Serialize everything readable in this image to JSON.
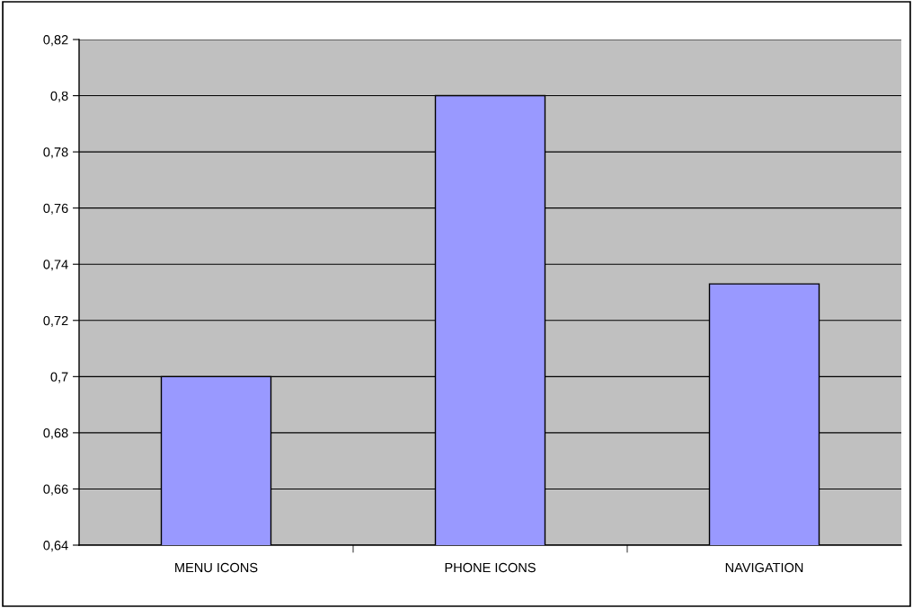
{
  "chart_data": {
    "type": "bar",
    "categories": [
      "MENU ICONS",
      "PHONE ICONS",
      "NAVIGATION"
    ],
    "values": [
      0.7,
      0.8,
      0.733
    ],
    "color": "#9999ff",
    "ylim": [
      0.64,
      0.82
    ],
    "yticks": [
      {
        "value": 0.64,
        "label": "0,64"
      },
      {
        "value": 0.66,
        "label": "0,66"
      },
      {
        "value": 0.68,
        "label": "0,68"
      },
      {
        "value": 0.7,
        "label": "0,7"
      },
      {
        "value": 0.72,
        "label": "0,72"
      },
      {
        "value": 0.74,
        "label": "0,74"
      },
      {
        "value": 0.76,
        "label": "0,76"
      },
      {
        "value": 0.78,
        "label": "0,78"
      },
      {
        "value": 0.8,
        "label": "0,8"
      },
      {
        "value": 0.82,
        "label": "0,82"
      }
    ],
    "grid": "y",
    "legend": false
  }
}
